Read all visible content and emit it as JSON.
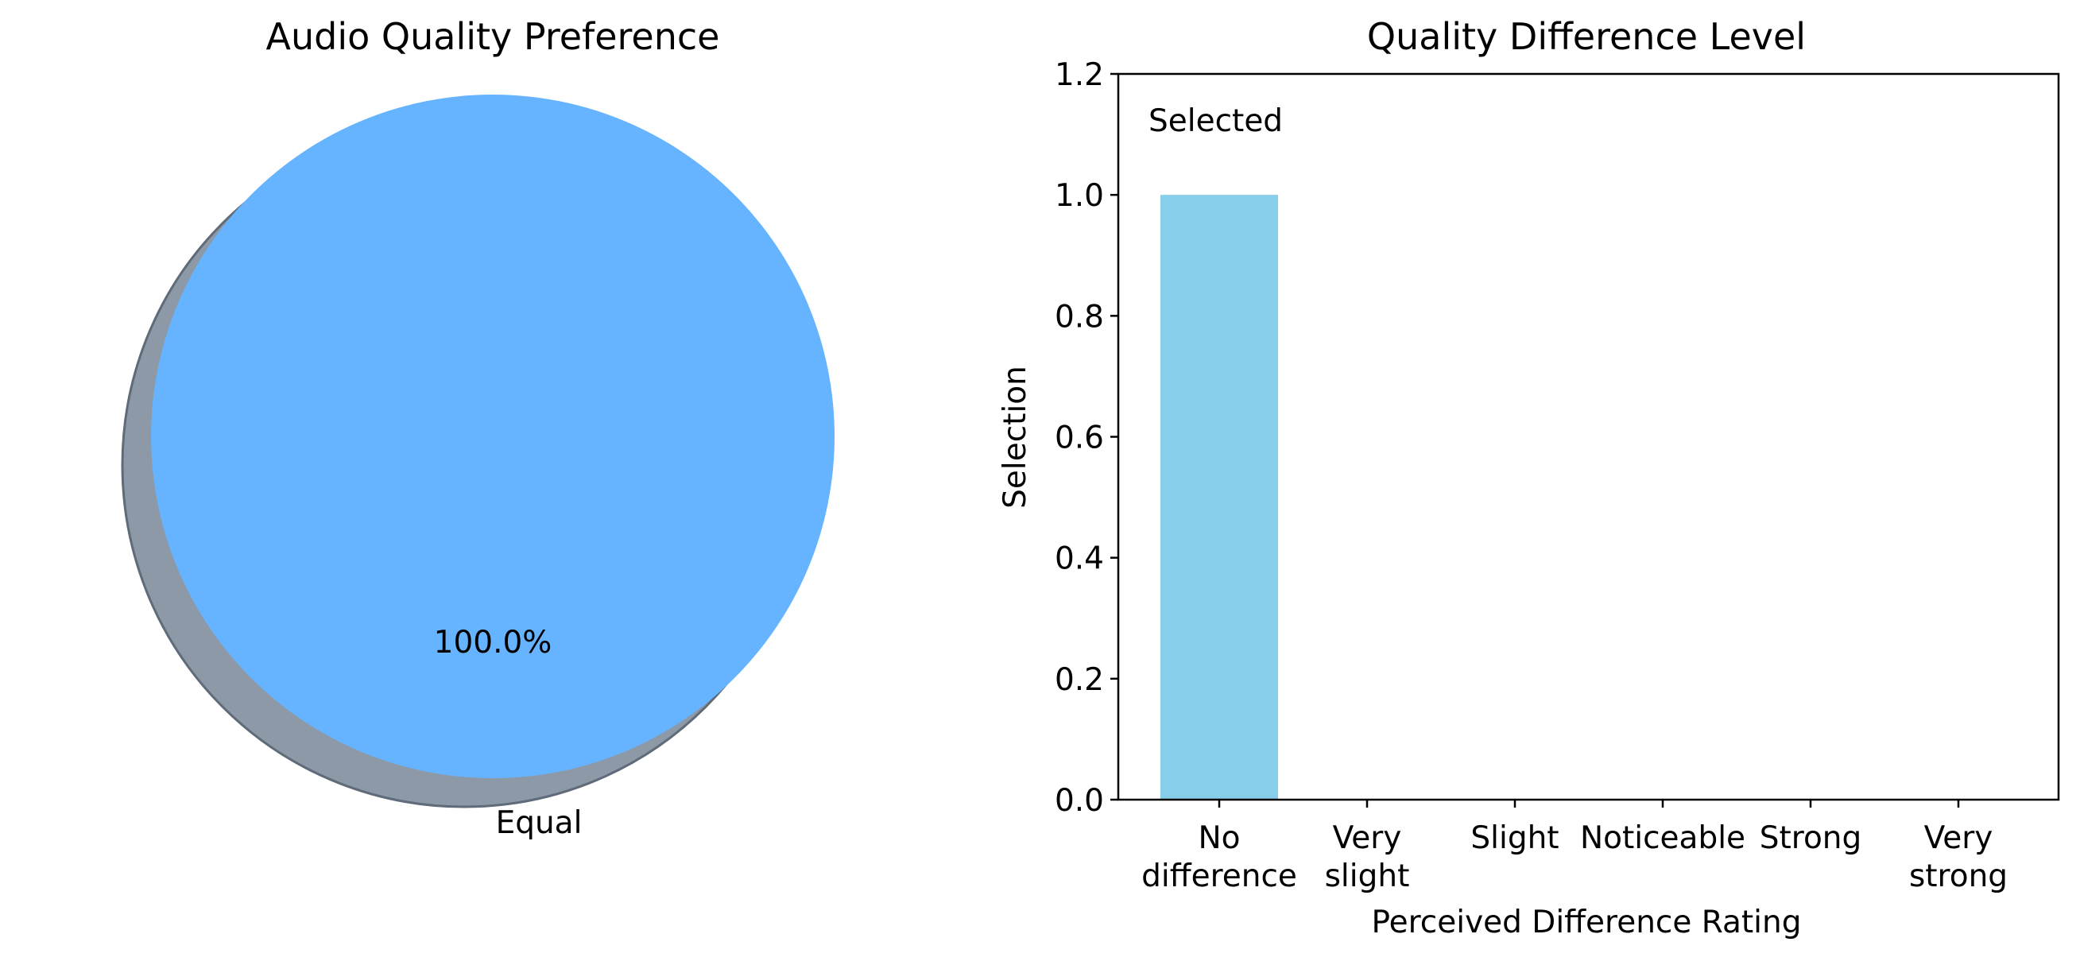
{
  "chart_data": [
    {
      "type": "pie",
      "title": "Audio Quality Preference",
      "labels": [
        "Equal"
      ],
      "values": [
        100.0
      ],
      "autopct": [
        "100.0%"
      ],
      "colors": [
        "#66b3ff"
      ],
      "shadow": true
    },
    {
      "type": "bar",
      "title": "Quality Difference Level",
      "xlabel": "Perceived Difference Rating",
      "ylabel": "Selection",
      "categories": [
        "No\ndifference",
        "Very\nslight",
        "Slight",
        "Noticeable",
        "Strong",
        "Very\nstrong"
      ],
      "values": [
        1,
        0,
        0,
        0,
        0,
        0
      ],
      "ylim": [
        0,
        1.2
      ],
      "yticks": [
        0.0,
        0.2,
        0.4,
        0.6,
        0.8,
        1.0,
        1.2
      ],
      "ytick_labels": [
        "0.0",
        "0.2",
        "0.4",
        "0.6",
        "0.8",
        "1.0",
        "1.2"
      ],
      "bar_color": "#87ceeb",
      "annotation": "Selected",
      "grid": false
    }
  ]
}
